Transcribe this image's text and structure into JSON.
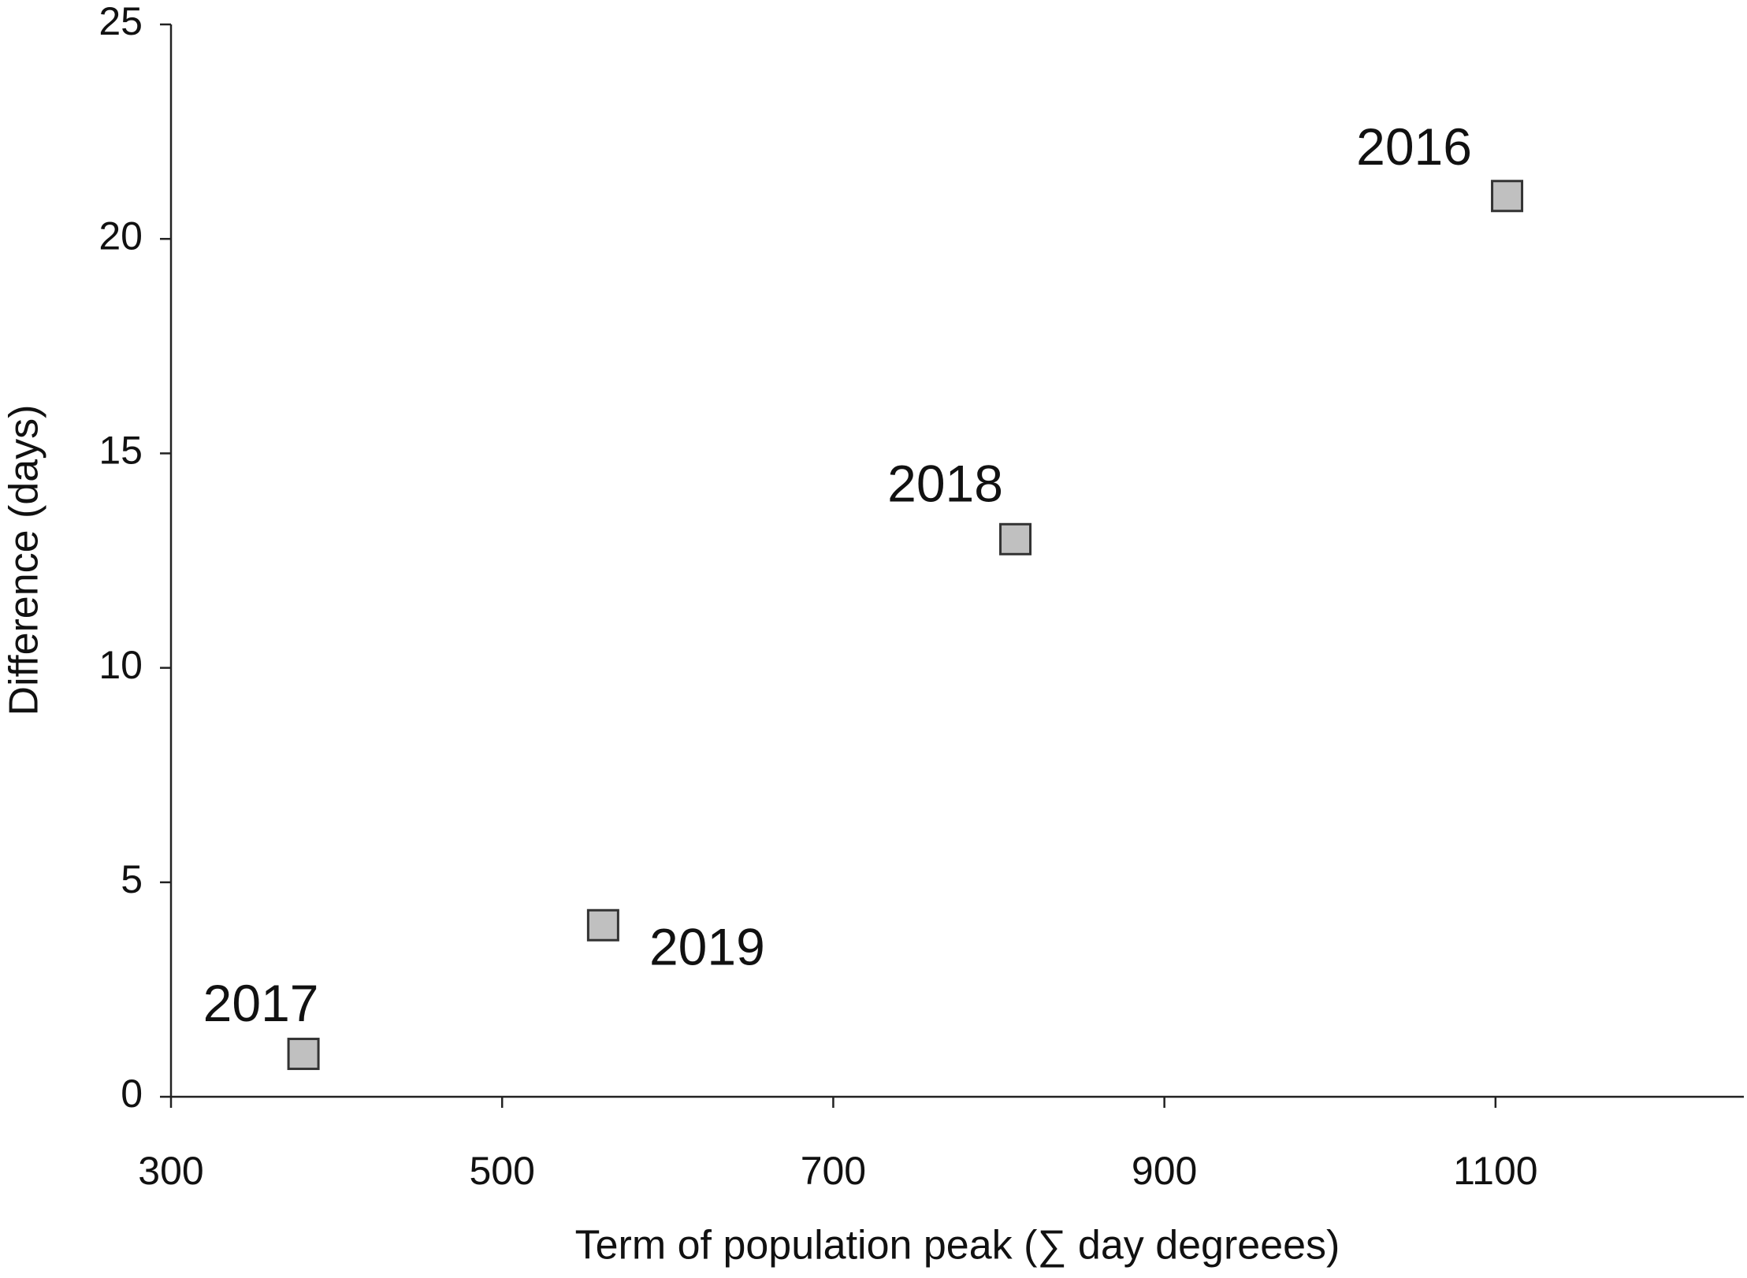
{
  "chart_data": {
    "type": "scatter",
    "x_label": "Term of population peak (∑ day degreees)",
    "y_label": "Difference (days)",
    "x": [
      380,
      561,
      810,
      1107
    ],
    "values": [
      1,
      4,
      13,
      21
    ],
    "point_labels": [
      "2017",
      "2019",
      "2018",
      "2016"
    ],
    "color": "#c0c0c0",
    "xlim": [
      300,
      1250
    ],
    "xticks": [
      300,
      500,
      700,
      900,
      1100
    ],
    "ylim": [
      0,
      25
    ],
    "yticks": [
      0,
      5,
      10,
      15,
      20,
      25
    ],
    "grid": false
  }
}
